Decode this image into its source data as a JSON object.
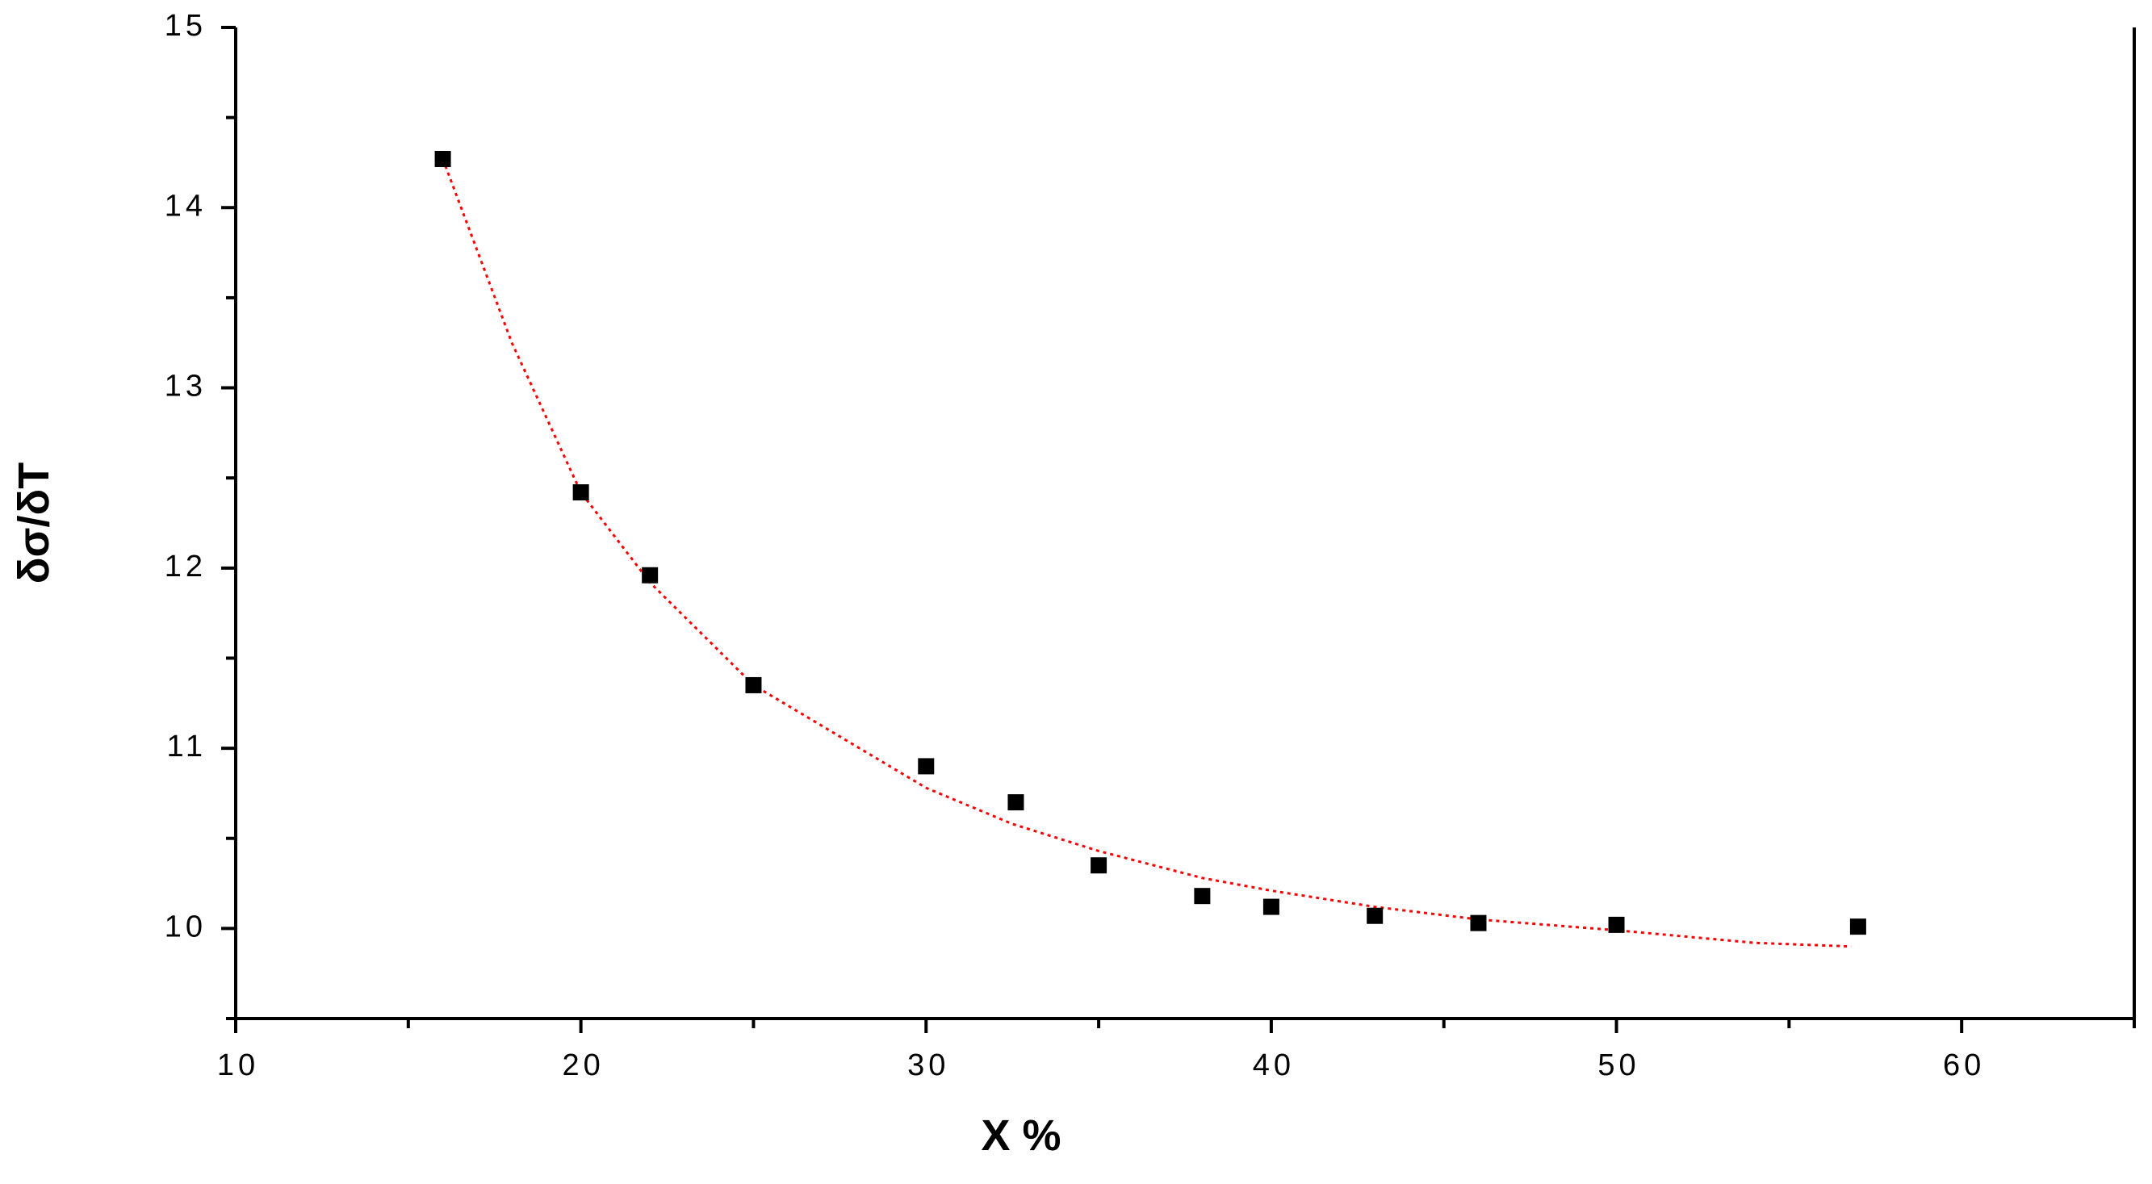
{
  "chart_data": {
    "type": "scatter",
    "x_label": "X %",
    "y_label": "δσ/δT",
    "xlim": [
      10,
      65
    ],
    "ylim": [
      9.5,
      15
    ],
    "xticks": [
      10,
      20,
      30,
      40,
      50,
      60
    ],
    "xminor": [
      15,
      25,
      35,
      45,
      55,
      65
    ],
    "yticks": [
      10,
      11,
      12,
      13,
      14,
      15
    ],
    "yminor": [
      9.5,
      10.5,
      11.5,
      12.5,
      13.5,
      14.5
    ],
    "points": {
      "color": "#000000",
      "x": [
        16,
        20,
        22,
        25,
        30,
        32.6,
        35,
        38,
        40,
        43,
        46,
        50,
        57
      ],
      "y": [
        14.27,
        12.42,
        11.96,
        11.35,
        10.9,
        10.7,
        10.35,
        10.18,
        10.12,
        10.07,
        10.03,
        10.02,
        10.01
      ]
    },
    "fit": {
      "color": "#ff0000",
      "x": [
        16,
        18,
        20,
        22,
        25,
        30,
        32.5,
        35,
        38,
        40,
        43,
        46,
        50,
        54,
        56.8
      ],
      "y": [
        14.27,
        13.25,
        12.42,
        11.92,
        11.35,
        10.78,
        10.58,
        10.43,
        10.28,
        10.21,
        10.12,
        10.05,
        9.99,
        9.92,
        9.9
      ]
    }
  }
}
